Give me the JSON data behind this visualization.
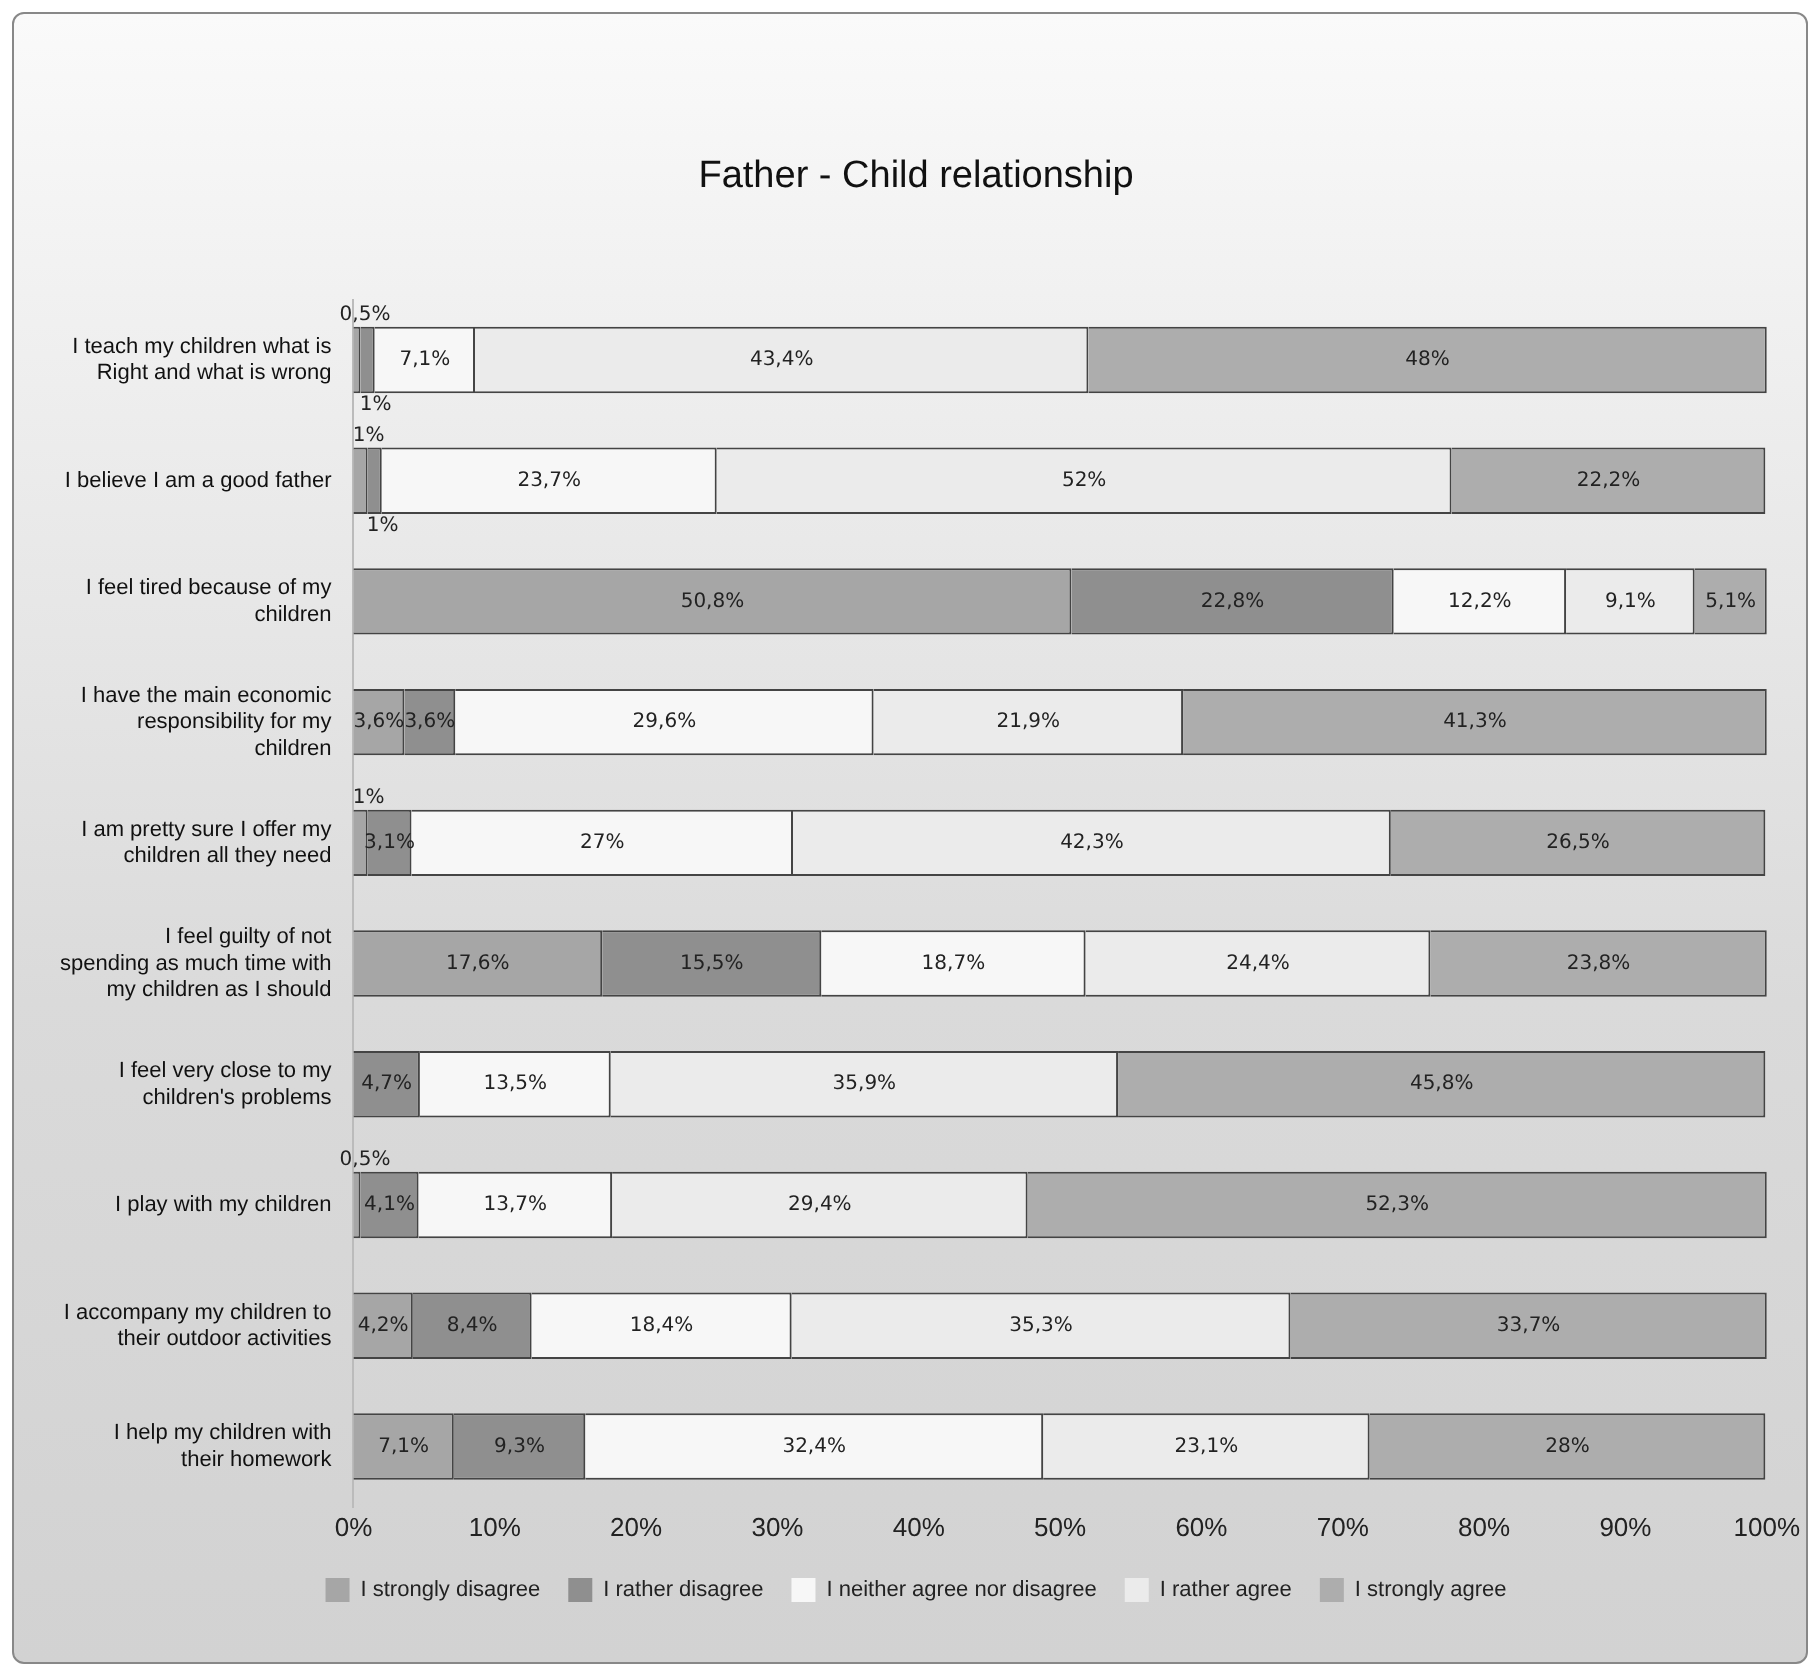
{
  "chart_data": {
    "type": "bar",
    "orientation": "horizontal",
    "stacked": true,
    "title": "Father - Child relationship",
    "categories": [
      "I teach my children what is Right and what is wrong",
      "I believe I am a good father",
      "I feel tired because of my children",
      "I have the main economic responsibility for my children",
      "I am pretty sure I offer my children all they need",
      "I feel guilty of not spending as much time with my children as I should",
      "I feel very close to my children's problems",
      "I play with my children",
      "I accompany my children to their outdoor activities",
      "I help my children with their homework"
    ],
    "series": [
      {
        "name": "I strongly disagree",
        "color": "#a6a6a6",
        "values": [
          0.5,
          1,
          50.8,
          3.6,
          1,
          17.6,
          null,
          0.5,
          4.2,
          7.1
        ],
        "value_labels": [
          "0,5%",
          "1%",
          "50,8%",
          "3,6%",
          "1%",
          "17,6%",
          null,
          "0,5%",
          "4,2%",
          "7,1%"
        ]
      },
      {
        "name": "I rather disagree",
        "color": "#8f8f8f",
        "values": [
          1,
          1,
          22.8,
          3.6,
          3.1,
          15.5,
          4.7,
          4.1,
          8.4,
          9.3
        ],
        "value_labels": [
          "1%",
          "1%",
          "22,8%",
          "3,6%",
          "3,1%",
          "15,5%",
          "4,7%",
          "4,1%",
          "8,4%",
          "9,3%"
        ]
      },
      {
        "name": "I neither agree nor disagree",
        "color": "#f7f7f7",
        "values": [
          7.1,
          23.7,
          12.2,
          29.6,
          27,
          18.7,
          13.5,
          13.7,
          18.4,
          32.4
        ],
        "value_labels": [
          "7,1%",
          "23,7%",
          "12,2%",
          "29,6%",
          "27%",
          "18,7%",
          "13,5%",
          "13,7%",
          "18,4%",
          "32,4%"
        ]
      },
      {
        "name": "I rather agree",
        "color": "#ebebeb",
        "values": [
          43.4,
          52,
          9.1,
          21.9,
          42.3,
          24.4,
          35.9,
          29.4,
          35.3,
          23.1
        ],
        "value_labels": [
          "43,4%",
          "52%",
          "9,1%",
          "21,9%",
          "42,3%",
          "24,4%",
          "35,9%",
          "29,4%",
          "35,3%",
          "23,1%"
        ]
      },
      {
        "name": "I strongly agree",
        "color": "#adadad",
        "values": [
          48,
          22.2,
          5.1,
          41.3,
          26.5,
          23.8,
          45.8,
          52.3,
          33.7,
          28
        ],
        "value_labels": [
          "48%",
          "22,2%",
          "5,1%",
          "41,3%",
          "26,5%",
          "23,8%",
          "45,8%",
          "52,3%",
          "33,7%",
          "28%"
        ]
      }
    ],
    "xlim": [
      0,
      100
    ],
    "xticks": [
      {
        "value": 0,
        "label": "0%"
      },
      {
        "value": 10,
        "label": "10%"
      },
      {
        "value": 20,
        "label": "20%"
      },
      {
        "value": 30,
        "label": "30%"
      },
      {
        "value": 40,
        "label": "40%"
      },
      {
        "value": 50,
        "label": "50%"
      },
      {
        "value": 60,
        "label": "60%"
      },
      {
        "value": 70,
        "label": "70%"
      },
      {
        "value": 80,
        "label": "80%"
      },
      {
        "value": 90,
        "label": "90%"
      },
      {
        "value": 100,
        "label": "100%"
      }
    ],
    "legend": "bottom"
  }
}
